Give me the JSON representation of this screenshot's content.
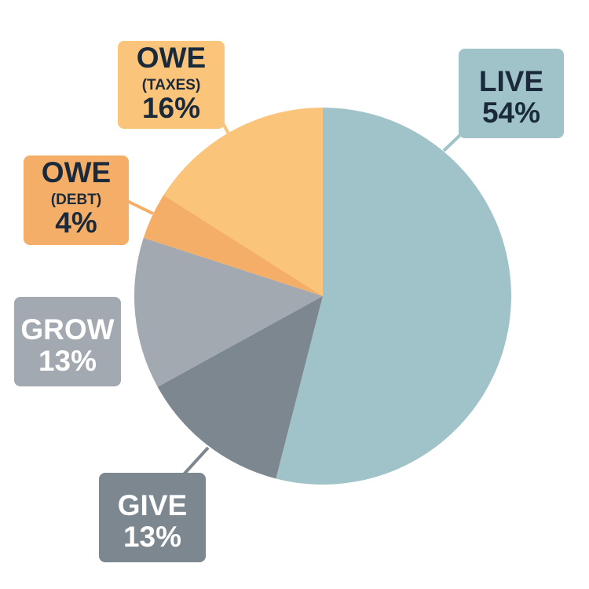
{
  "chart_data": {
    "type": "pie",
    "title": "",
    "start": "top, clockwise",
    "slices": [
      {
        "name": "LIVE",
        "sublabel": "",
        "value": 54,
        "value_label": "54%",
        "color": "#9fc3c9",
        "text_color": "#1a2a3a"
      },
      {
        "name": "GIVE",
        "sublabel": "",
        "value": 13,
        "value_label": "13%",
        "color": "#7d8790",
        "text_color": "#ffffff"
      },
      {
        "name": "GROW",
        "sublabel": "",
        "value": 13,
        "value_label": "13%",
        "color": "#a2a9b0",
        "text_color": "#ffffff"
      },
      {
        "name": "OWE",
        "sublabel": "(DEBT)",
        "value": 4,
        "value_label": "4%",
        "color": "#f5ae68",
        "text_color": "#1a2a3a"
      },
      {
        "name": "OWE",
        "sublabel": "(TAXES)",
        "value": 16,
        "value_label": "16%",
        "color": "#fbc47b",
        "text_color": "#1a2a3a"
      }
    ]
  }
}
